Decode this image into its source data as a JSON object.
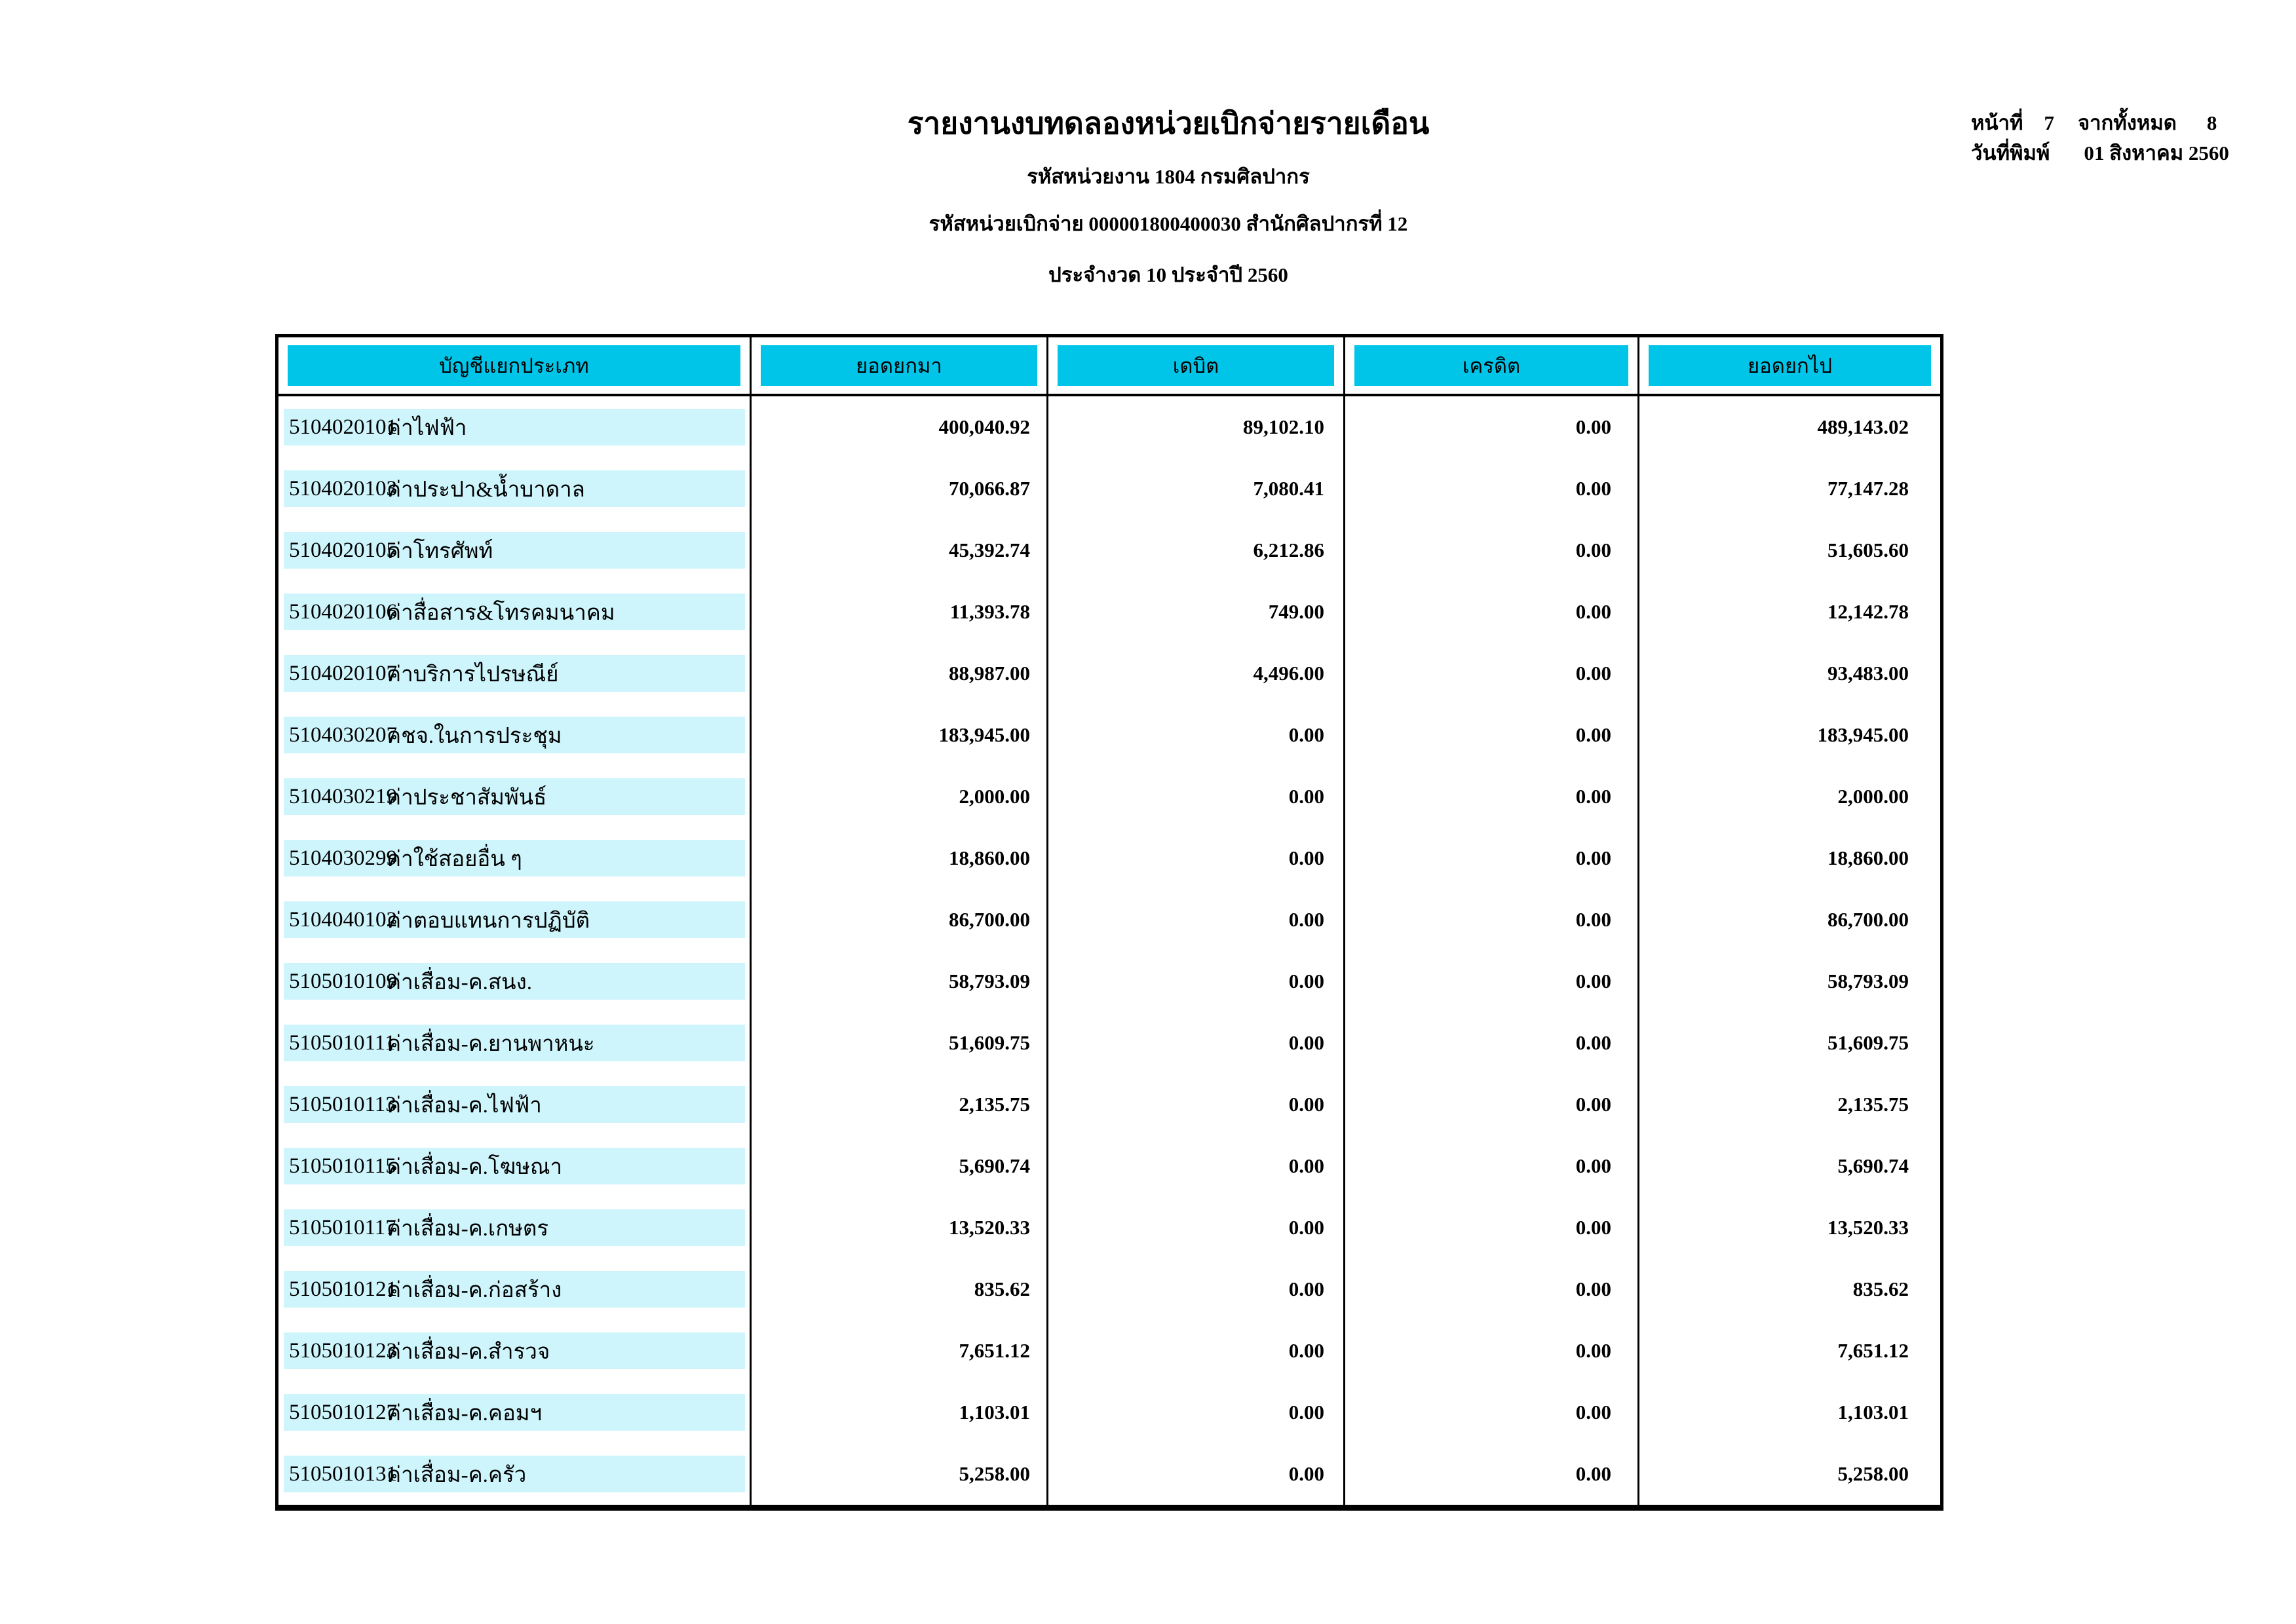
{
  "header": {
    "title": "รายงานงบทดลองหน่วยเบิกจ่ายรายเดือน",
    "org_line": "รหัสหน่วยงาน 1804 กรมศิลปากร",
    "unit_line": "รหัสหน่วยเบิกจ่าย 000001800400030 สำนักศิลปากรที่ 12",
    "period_line": "ประจำงวด 10 ประจำปี 2560"
  },
  "page_info": {
    "page_label": "หน้าที่",
    "page_number": "7",
    "of_label": "จากทั้งหมด",
    "total_pages": "8",
    "print_date_label": "วันที่พิมพ์",
    "print_date": "01 สิงหาคม 2560"
  },
  "table": {
    "columns": [
      "บัญชีแยกประเภท",
      "ยอดยกมา",
      "เดบิต",
      "เครดิต",
      "ยอดยกไป"
    ],
    "rows": [
      {
        "code": "5104020101",
        "name": "ค่าไฟฟ้า",
        "opening": "400,040.92",
        "debit": "89,102.10",
        "credit": "0.00",
        "closing": "489,143.02"
      },
      {
        "code": "5104020103",
        "name": "ค่าประปา&น้ำบาดาล",
        "opening": "70,066.87",
        "debit": "7,080.41",
        "credit": "0.00",
        "closing": "77,147.28"
      },
      {
        "code": "5104020105",
        "name": "ค่าโทรศัพท์",
        "opening": "45,392.74",
        "debit": "6,212.86",
        "credit": "0.00",
        "closing": "51,605.60"
      },
      {
        "code": "5104020106",
        "name": "ค่าสื่อสาร&โทรคมนาคม",
        "opening": "11,393.78",
        "debit": "749.00",
        "credit": "0.00",
        "closing": "12,142.78"
      },
      {
        "code": "5104020107",
        "name": "ค่าบริการไปรษณีย์",
        "opening": "88,987.00",
        "debit": "4,496.00",
        "credit": "0.00",
        "closing": "93,483.00"
      },
      {
        "code": "5104030207",
        "name": "คชจ.ในการประชุม",
        "opening": "183,945.00",
        "debit": "0.00",
        "credit": "0.00",
        "closing": "183,945.00"
      },
      {
        "code": "5104030219",
        "name": "ค่าประชาสัมพันธ์",
        "opening": "2,000.00",
        "debit": "0.00",
        "credit": "0.00",
        "closing": "2,000.00"
      },
      {
        "code": "5104030299",
        "name": "ค่าใช้สอยอื่น ๆ",
        "opening": "18,860.00",
        "debit": "0.00",
        "credit": "0.00",
        "closing": "18,860.00"
      },
      {
        "code": "5104040102",
        "name": "ค่าตอบแทนการปฏิบัติ",
        "opening": "86,700.00",
        "debit": "0.00",
        "credit": "0.00",
        "closing": "86,700.00"
      },
      {
        "code": "5105010109",
        "name": "ค่าเสื่อม-ค.สนง.",
        "opening": "58,793.09",
        "debit": "0.00",
        "credit": "0.00",
        "closing": "58,793.09"
      },
      {
        "code": "5105010111",
        "name": "ค่าเสื่อม-ค.ยานพาหนะ",
        "opening": "51,609.75",
        "debit": "0.00",
        "credit": "0.00",
        "closing": "51,609.75"
      },
      {
        "code": "5105010113",
        "name": "ค่าเสื่อม-ค.ไฟฟ้า",
        "opening": "2,135.75",
        "debit": "0.00",
        "credit": "0.00",
        "closing": "2,135.75"
      },
      {
        "code": "5105010115",
        "name": "ค่าเสื่อม-ค.โฆษณา",
        "opening": "5,690.74",
        "debit": "0.00",
        "credit": "0.00",
        "closing": "5,690.74"
      },
      {
        "code": "5105010117",
        "name": "ค่าเสื่อม-ค.เกษตร",
        "opening": "13,520.33",
        "debit": "0.00",
        "credit": "0.00",
        "closing": "13,520.33"
      },
      {
        "code": "5105010121",
        "name": "ค่าเสื่อม-ค.ก่อสร้าง",
        "opening": "835.62",
        "debit": "0.00",
        "credit": "0.00",
        "closing": "835.62"
      },
      {
        "code": "5105010123",
        "name": "ค่าเสื่อม-ค.สำรวจ",
        "opening": "7,651.12",
        "debit": "0.00",
        "credit": "0.00",
        "closing": "7,651.12"
      },
      {
        "code": "5105010127",
        "name": "ค่าเสื่อม-ค.คอมฯ",
        "opening": "1,103.01",
        "debit": "0.00",
        "credit": "0.00",
        "closing": "1,103.01"
      },
      {
        "code": "5105010131",
        "name": "ค่าเสื่อม-ค.ครัว",
        "opening": "5,258.00",
        "debit": "0.00",
        "credit": "0.00",
        "closing": "5,258.00"
      }
    ]
  },
  "colors": {
    "header_fill": "#00c4e8",
    "row_fill": "#cef5fc",
    "border_color": "#000000"
  }
}
